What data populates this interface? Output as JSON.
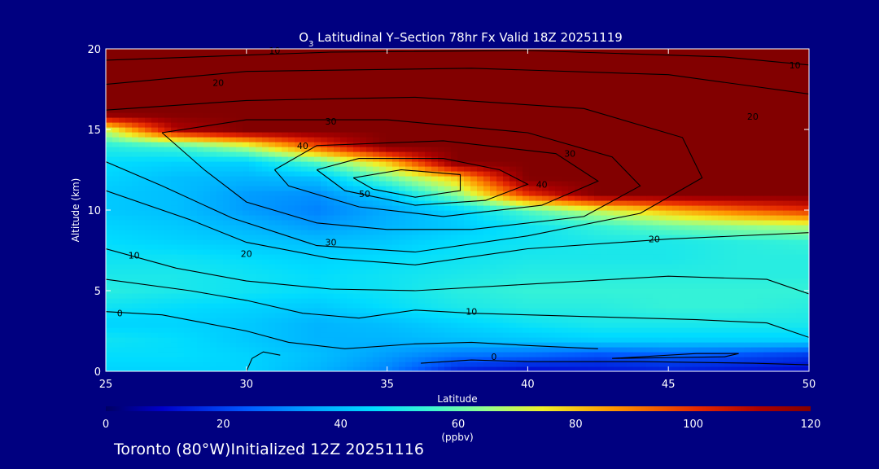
{
  "chart_data": {
    "type": "heatmap",
    "title_prefix": "O",
    "title_sub": "3",
    "title_rest": " Latitudinal Y–Section 78hr  Fx Valid 18Z 20251119",
    "xlabel": "Latitude",
    "ylabel": "Altitude (km)",
    "xlim": [
      25,
      50
    ],
    "ylim": [
      0,
      20
    ],
    "x_ticks": [
      25,
      30,
      35,
      40,
      45,
      50
    ],
    "y_ticks": [
      0,
      5,
      10,
      15,
      20
    ],
    "colorbar": {
      "min": 0,
      "max": 120,
      "ticks": [
        0,
        20,
        40,
        60,
        80,
        100,
        120
      ],
      "unit": "(ppbv)",
      "colormap": "rainbow"
    },
    "x": [
      25,
      27.5,
      30,
      32.5,
      35,
      37.5,
      40,
      42.5,
      45,
      47.5,
      50
    ],
    "y": [
      0,
      1,
      2,
      3,
      4,
      5,
      6,
      7,
      8,
      9,
      10,
      11,
      12,
      13,
      14,
      15,
      16,
      17,
      18,
      19,
      20
    ],
    "values": [
      [
        44,
        44,
        44,
        38,
        30,
        14,
        10,
        12,
        14,
        12,
        10
      ],
      [
        46,
        46,
        44,
        40,
        34,
        28,
        26,
        22,
        24,
        22,
        18
      ],
      [
        48,
        46,
        42,
        38,
        38,
        40,
        42,
        44,
        44,
        44,
        44
      ],
      [
        44,
        44,
        42,
        38,
        40,
        44,
        48,
        50,
        50,
        50,
        50
      ],
      [
        48,
        46,
        44,
        42,
        46,
        50,
        52,
        52,
        54,
        54,
        52
      ],
      [
        52,
        50,
        48,
        46,
        48,
        52,
        54,
        54,
        54,
        54,
        54
      ],
      [
        50,
        50,
        48,
        46,
        48,
        50,
        52,
        52,
        52,
        52,
        52
      ],
      [
        48,
        48,
        46,
        44,
        46,
        48,
        50,
        50,
        50,
        52,
        52
      ],
      [
        46,
        44,
        42,
        40,
        42,
        46,
        48,
        50,
        50,
        52,
        54
      ],
      [
        44,
        42,
        38,
        34,
        38,
        42,
        48,
        54,
        60,
        64,
        68
      ],
      [
        42,
        40,
        34,
        30,
        36,
        44,
        58,
        70,
        82,
        92,
        100
      ],
      [
        42,
        40,
        34,
        32,
        42,
        64,
        100,
        120,
        120,
        120,
        120
      ],
      [
        44,
        40,
        38,
        40,
        60,
        80,
        120,
        120,
        120,
        120,
        120
      ],
      [
        46,
        44,
        44,
        58,
        80,
        120,
        120,
        120,
        120,
        120,
        120
      ],
      [
        52,
        56,
        70,
        96,
        120,
        120,
        120,
        120,
        120,
        120,
        120
      ],
      [
        70,
        110,
        120,
        120,
        120,
        120,
        120,
        120,
        120,
        120,
        120
      ],
      [
        120,
        120,
        120,
        120,
        120,
        120,
        120,
        120,
        120,
        120,
        120
      ],
      [
        120,
        120,
        120,
        120,
        120,
        120,
        120,
        120,
        120,
        120,
        120
      ],
      [
        120,
        120,
        120,
        120,
        120,
        120,
        120,
        120,
        120,
        120,
        120
      ],
      [
        120,
        120,
        120,
        120,
        120,
        120,
        120,
        120,
        120,
        120,
        120
      ],
      [
        120,
        120,
        120,
        120,
        120,
        120,
        120,
        120,
        120,
        120,
        120
      ]
    ],
    "contours": [
      {
        "label": "50",
        "points": [
          [
            33.8,
            12.0
          ],
          [
            35.5,
            12.5
          ],
          [
            37.6,
            12.2
          ],
          [
            37.6,
            11.2
          ],
          [
            36.0,
            10.8
          ],
          [
            34.5,
            11.3
          ],
          [
            33.8,
            12.0
          ]
        ]
      },
      {
        "label": "40",
        "points": [
          [
            32.5,
            12.5
          ],
          [
            34.0,
            13.2
          ],
          [
            37.0,
            13.2
          ],
          [
            39.0,
            12.5
          ],
          [
            40.0,
            11.6
          ],
          [
            38.5,
            10.6
          ],
          [
            36.0,
            10.3
          ],
          [
            33.5,
            11.2
          ],
          [
            32.5,
            12.5
          ]
        ]
      },
      {
        "label": "40",
        "points": [
          [
            31.0,
            12.5
          ],
          [
            32.5,
            14.0
          ],
          [
            37.0,
            14.3
          ],
          [
            41.0,
            13.5
          ],
          [
            42.5,
            11.8
          ],
          [
            40.5,
            10.3
          ],
          [
            37.0,
            9.6
          ],
          [
            34.0,
            10.2
          ],
          [
            31.5,
            11.5
          ],
          [
            31.0,
            12.5
          ]
        ]
      },
      {
        "label": "30",
        "points": [
          [
            27.0,
            14.8
          ],
          [
            30.0,
            15.6
          ],
          [
            35.0,
            15.6
          ],
          [
            40.0,
            14.8
          ],
          [
            43.0,
            13.3
          ],
          [
            44.0,
            11.5
          ],
          [
            42.0,
            9.6
          ],
          [
            38.0,
            8.8
          ],
          [
            35.0,
            8.8
          ],
          [
            32.5,
            9.2
          ],
          [
            30.0,
            10.5
          ],
          [
            28.5,
            12.5
          ],
          [
            27.0,
            14.8
          ]
        ]
      },
      {
        "label": "30",
        "points": [
          [
            25.0,
            16.2
          ],
          [
            30.0,
            16.8
          ],
          [
            36.0,
            17.0
          ],
          [
            42.0,
            16.3
          ],
          [
            45.5,
            14.5
          ],
          [
            46.2,
            12.0
          ],
          [
            44.0,
            9.8
          ],
          [
            40.0,
            8.4
          ],
          [
            36.0,
            7.4
          ],
          [
            32.5,
            7.8
          ],
          [
            29.5,
            9.5
          ],
          [
            27.0,
            11.5
          ],
          [
            25.0,
            13.0
          ]
        ]
      },
      {
        "label": "20",
        "points": [
          [
            25.0,
            17.8
          ],
          [
            30.0,
            18.6
          ],
          [
            38.0,
            18.8
          ],
          [
            45.0,
            18.4
          ],
          [
            50.0,
            17.2
          ]
        ]
      },
      {
        "label": "20",
        "points": [
          [
            25.0,
            11.2
          ],
          [
            28.0,
            9.4
          ],
          [
            30.0,
            8.0
          ],
          [
            33.0,
            7.0
          ],
          [
            36.0,
            6.6
          ],
          [
            40.0,
            7.6
          ],
          [
            45.0,
            8.2
          ],
          [
            50.0,
            8.6
          ]
        ]
      },
      {
        "label": "10",
        "points": [
          [
            25.0,
            19.3
          ],
          [
            33.0,
            19.8
          ],
          [
            40.0,
            19.9
          ],
          [
            47.0,
            19.5
          ],
          [
            50.0,
            19.0
          ]
        ]
      },
      {
        "label": "10",
        "points": [
          [
            25.0,
            7.6
          ],
          [
            27.5,
            6.4
          ],
          [
            30.0,
            5.6
          ],
          [
            33.0,
            5.1
          ],
          [
            36.0,
            5.0
          ],
          [
            40.0,
            5.4
          ],
          [
            45.0,
            5.9
          ],
          [
            48.5,
            5.7
          ],
          [
            50.0,
            4.8
          ]
        ]
      },
      {
        "label": "10",
        "points": [
          [
            25.0,
            5.7
          ],
          [
            28.0,
            5.0
          ],
          [
            30.0,
            4.4
          ],
          [
            32.0,
            3.6
          ],
          [
            34.0,
            3.3
          ],
          [
            36.0,
            3.8
          ],
          [
            38.0,
            3.6
          ],
          [
            42.0,
            3.4
          ],
          [
            46.0,
            3.2
          ],
          [
            48.5,
            3.0
          ],
          [
            50.0,
            2.1
          ]
        ]
      },
      {
        "label": "0",
        "points": [
          [
            25.0,
            3.7
          ],
          [
            27.0,
            3.5
          ],
          [
            28.5,
            3.0
          ],
          [
            30.0,
            2.5
          ],
          [
            31.5,
            1.8
          ],
          [
            33.5,
            1.4
          ],
          [
            36.0,
            1.7
          ],
          [
            38.0,
            1.8
          ],
          [
            40.0,
            1.6
          ],
          [
            42.5,
            1.4
          ]
        ]
      },
      {
        "label": "0",
        "points": [
          [
            36.2,
            0.5
          ],
          [
            38.0,
            0.7
          ],
          [
            40.0,
            0.6
          ],
          [
            44.0,
            0.6
          ],
          [
            48.0,
            0.5
          ],
          [
            50.0,
            0.4
          ]
        ]
      },
      {
        "label": "",
        "points": [
          [
            30.0,
            0.0
          ],
          [
            30.2,
            0.8
          ],
          [
            30.6,
            1.2
          ],
          [
            31.2,
            1.0
          ]
        ]
      },
      {
        "label": "",
        "points": [
          [
            43.0,
            0.8
          ],
          [
            46.0,
            1.1
          ],
          [
            47.5,
            1.1
          ],
          [
            47.0,
            0.9
          ],
          [
            43.0,
            0.8
          ]
        ]
      }
    ],
    "contour_labels": [
      {
        "text": "10",
        "x": 31.0,
        "y": 19.9
      },
      {
        "text": "20",
        "x": 29.0,
        "y": 17.9
      },
      {
        "text": "30",
        "x": 33.0,
        "y": 15.5
      },
      {
        "text": "40",
        "x": 32.0,
        "y": 14.0
      },
      {
        "text": "50",
        "x": 34.2,
        "y": 11.0
      },
      {
        "text": "40",
        "x": 40.5,
        "y": 11.6
      },
      {
        "text": "30",
        "x": 41.5,
        "y": 13.5
      },
      {
        "text": "30",
        "x": 33.0,
        "y": 8.0
      },
      {
        "text": "20",
        "x": 30.0,
        "y": 7.3
      },
      {
        "text": "20",
        "x": 44.5,
        "y": 8.2
      },
      {
        "text": "20",
        "x": 48.0,
        "y": 15.8
      },
      {
        "text": "10",
        "x": 26.0,
        "y": 7.2
      },
      {
        "text": "10",
        "x": 38.0,
        "y": 3.7
      },
      {
        "text": "10",
        "x": 49.5,
        "y": 19.0
      },
      {
        "text": "0",
        "x": 25.5,
        "y": 3.6
      },
      {
        "text": "0",
        "x": 38.8,
        "y": 0.9
      }
    ]
  },
  "footer": "Toronto (80°W)Initialized 12Z 20251116"
}
